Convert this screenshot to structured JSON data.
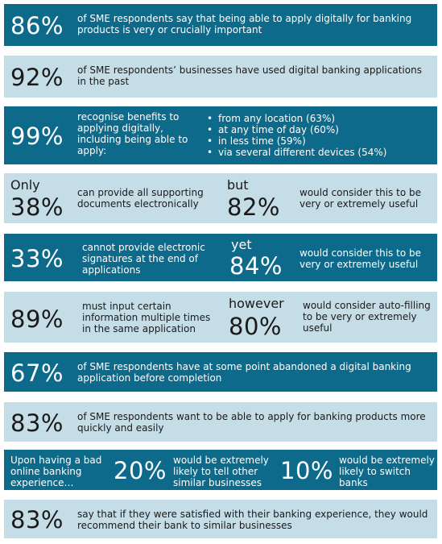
{
  "rows": [
    {
      "pct": "86%",
      "text": "of SME respondents say that being able to apply digitally for banking products is very or crucially important"
    },
    {
      "pct": "92%",
      "text": "of SME respondents’ businesses have used digital banking applications in the past"
    },
    {
      "pct": "99%",
      "text": "recognise benefits to applying digitally, including being able to apply:",
      "bullets": [
        "from any location (63%)",
        "at any time of day (60%)",
        "in less time (59%)",
        "via several different devices (54%)"
      ]
    },
    {
      "lead": "Only",
      "pct": "38%",
      "text": "can provide all supporting documents electronically",
      "lead2": "but",
      "pct2": "82%",
      "text2": "would consider this to be very or extremely useful"
    },
    {
      "pct": "33%",
      "text": "cannot provide electronic signatures at the end of applications",
      "lead2": "yet",
      "pct2": "84%",
      "text2": "would consider this to be very or extremely useful"
    },
    {
      "pct": "89%",
      "text": "must input certain information multiple times in the same application",
      "lead2": "however",
      "pct2": "80%",
      "text2": "would consider auto-filling to be very or extremely useful"
    },
    {
      "pct": "67%",
      "text": "of SME respondents have at some point abandoned a digital banking application before completion"
    },
    {
      "pct": "83%",
      "text": "of SME respondents want to be able to apply for banking products more quickly and easily"
    },
    {
      "text": "Upon having a bad online banking experience…",
      "pct": "20%",
      "text1": "would be extremely likely to tell other similar businesses",
      "pct2": "10%",
      "text2": "would be extremely likely to switch banks"
    },
    {
      "pct": "83%",
      "text": "say that if they were satisfied with their banking experience, they would recommend their bank to similar businesses"
    }
  ]
}
